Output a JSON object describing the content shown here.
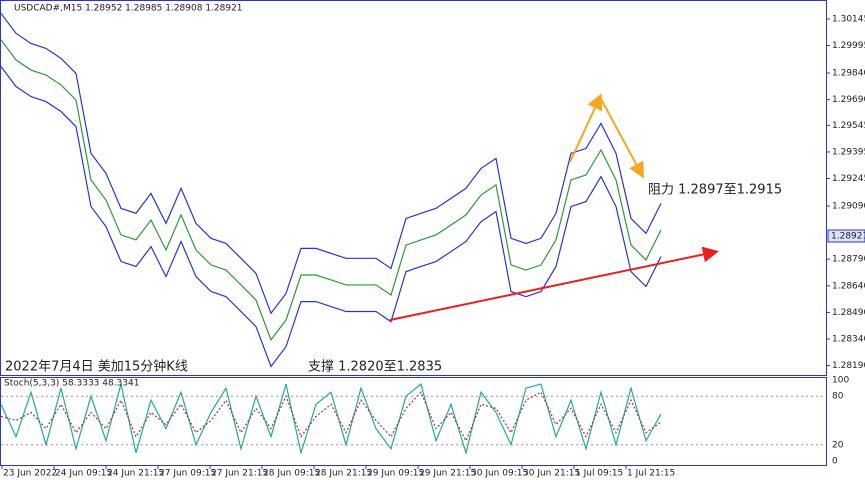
{
  "chart_data": {
    "type": "line",
    "title": "2022年7月4日 美加15分钟K线",
    "symbol_info": "USDCAD#,M15  1.28952 1.28985 1.28908 1.28921",
    "annotations": [
      "阻力 1.2897至1.2915",
      "支撑 1.2820至1.2835"
    ],
    "time_labels": [
      "23 Jun 2022",
      "24 Jun 09:15",
      "24 Jun 21:15",
      "27 Jun 09:15",
      "27 Jun 21:15",
      "28 Jun 09:15",
      "28 Jun 21:15",
      "29 Jun 09:15",
      "29 Jun 21:15",
      "30 Jun 09:15",
      "30 Jun 21:15",
      "1 Jul 09:15",
      "1 Jul 21:15"
    ],
    "ylim": [
      1.28137,
      1.30252
    ],
    "yticks": [
      1.30145,
      1.29995,
      {
        "value": 1.2984,
        "label": "1.29840"
      },
      {
        "value": 1.2969,
        "label": "1.29690"
      },
      1.29545,
      1.29395,
      1.29245,
      {
        "value": 1.2909,
        "label": "1.29090"
      },
      {
        "value": 1.2879,
        "label": "1.28790"
      },
      {
        "value": 1.2864,
        "label": "1.28640"
      },
      {
        "value": 1.2849,
        "label": "1.28490"
      },
      {
        "value": 1.2834,
        "label": "1.28340"
      },
      {
        "value": 1.2819,
        "label": "1.28190"
      }
    ],
    "current_price": 1.28921,
    "series": [
      {
        "color": "#2b9a3a",
        "values": [
          1.30027,
          1.29914,
          1.29857,
          1.29829,
          1.29773,
          1.29688,
          1.29237,
          1.29124,
          1.28927,
          1.28899,
          1.29011,
          1.28842,
          1.2904,
          1.28842,
          1.28758,
          1.28729,
          1.28645,
          1.2856,
          1.28335,
          1.28447,
          1.28701,
          1.28701,
          1.28673,
          1.28645,
          1.28645,
          1.28645,
          1.28588,
          1.2887,
          1.28899,
          1.28927,
          1.28983,
          1.2904,
          1.29152,
          1.29209,
          1.28758,
          1.28729,
          1.28758,
          1.28899,
          1.29237,
          1.29265,
          1.29406,
          1.29237,
          1.2887,
          1.28786,
          1.28955
        ]
      },
      {
        "color": "#2a35d0",
        "values": [
          1.30177,
          1.30064,
          1.30007,
          1.29979,
          1.29923,
          1.29838,
          1.29387,
          1.29274,
          1.29077,
          1.29049,
          1.29161,
          1.28992,
          1.2919,
          1.28992,
          1.28908,
          1.28879,
          1.28795,
          1.2871,
          1.28485,
          1.28597,
          1.28851,
          1.28851,
          1.28823,
          1.28795,
          1.28795,
          1.28795,
          1.28738,
          1.2902,
          1.29049,
          1.29077,
          1.29133,
          1.2919,
          1.29302,
          1.29359,
          1.28908,
          1.28879,
          1.28908,
          1.29049,
          1.29387,
          1.29415,
          1.29556,
          1.29387,
          1.2902,
          1.28936,
          1.29105
        ]
      },
      {
        "color": "#2a35d0",
        "values": [
          1.29877,
          1.29764,
          1.29707,
          1.29679,
          1.29623,
          1.29538,
          1.29087,
          1.28974,
          1.28777,
          1.28749,
          1.28861,
          1.28692,
          1.2889,
          1.28692,
          1.28608,
          1.28579,
          1.28495,
          1.2841,
          1.28185,
          1.28297,
          1.28551,
          1.28551,
          1.28523,
          1.28495,
          1.28495,
          1.28495,
          1.28438,
          1.2872,
          1.28749,
          1.28777,
          1.28833,
          1.2889,
          1.29002,
          1.29059,
          1.28608,
          1.28579,
          1.28608,
          1.28749,
          1.29087,
          1.29115,
          1.29256,
          1.29087,
          1.2872,
          1.28636,
          1.28805
        ]
      }
    ],
    "stoch": {
      "title": "Stoch(5,3,3) 58.3333 48.3341",
      "ylim": [
        0,
        100
      ],
      "yticks": [
        100,
        80,
        20,
        0
      ],
      "series": [
        {
          "color": "#20a8a0",
          "values": [
            70,
            30,
            85,
            20,
            90,
            15,
            80,
            25,
            95,
            10,
            75,
            40,
            85,
            20,
            60,
            90,
            15,
            80,
            30,
            95,
            10,
            70,
            85,
            20,
            90,
            40,
            15,
            80,
            95,
            25,
            70,
            10,
            85,
            60,
            20,
            90,
            95,
            30,
            75,
            15,
            85,
            20,
            90,
            25,
            58
          ]
        },
        {
          "color": "#a03838",
          "values": [
            55,
            50,
            60,
            40,
            70,
            35,
            60,
            40,
            75,
            30,
            60,
            45,
            70,
            35,
            50,
            75,
            35,
            65,
            40,
            80,
            30,
            55,
            70,
            35,
            75,
            50,
            30,
            65,
            85,
            40,
            60,
            25,
            70,
            65,
            35,
            75,
            85,
            45,
            65,
            30,
            70,
            35,
            75,
            35,
            48
          ]
        }
      ]
    }
  }
}
